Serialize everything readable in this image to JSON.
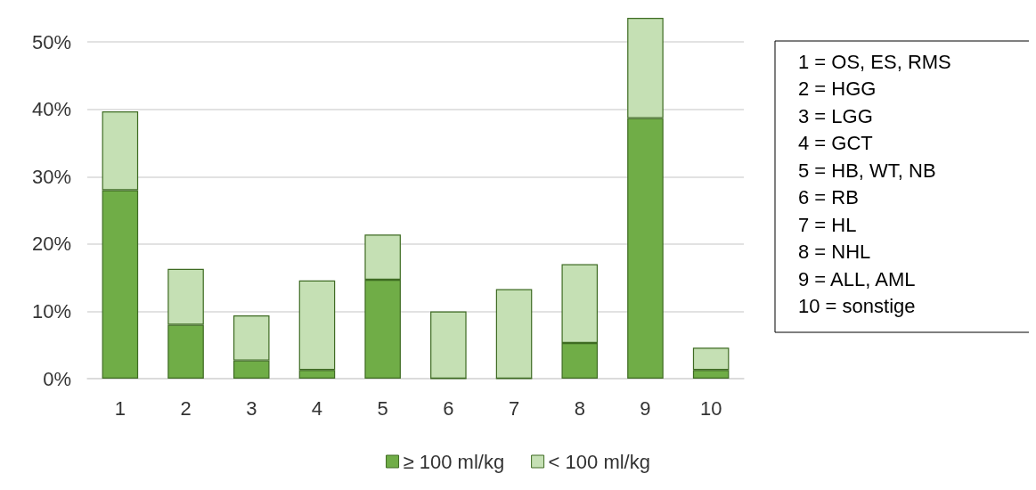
{
  "chart_data": {
    "type": "bar",
    "stacked": true,
    "categories": [
      "1",
      "2",
      "3",
      "4",
      "5",
      "6",
      "7",
      "8",
      "9",
      "10"
    ],
    "series": [
      {
        "name": "≥ 100 ml/kg",
        "color": "#70ad47",
        "values": [
          28,
          8,
          2.7,
          1.3,
          14.7,
          0,
          0,
          5.3,
          38.7,
          1.3
        ]
      },
      {
        "name": "< 100 ml/kg",
        "color": "#c5e0b4",
        "values": [
          11.7,
          8.3,
          6.7,
          13.3,
          6.7,
          10,
          13.3,
          11.7,
          14.9,
          3.3
        ]
      }
    ],
    "yticks": [
      {
        "value": 0,
        "label": "0%"
      },
      {
        "value": 10,
        "label": "10%"
      },
      {
        "value": 20,
        "label": "20%"
      },
      {
        "value": 30,
        "label": "30%"
      },
      {
        "value": 40,
        "label": "40%"
      },
      {
        "value": 50,
        "label": "50%"
      }
    ],
    "ylim": [
      0,
      53.6
    ],
    "grid": "y",
    "legend": "bottom",
    "annotations": [
      "1 = OS, ES, RMS",
      "2 = HGG",
      "3 = LGG",
      "4 = GCT",
      "5 = HB, WT, NB",
      "6 = RB",
      "7 = HL",
      "8 = NHL",
      "9 = ALL, AML",
      "10 = sonstige"
    ]
  }
}
